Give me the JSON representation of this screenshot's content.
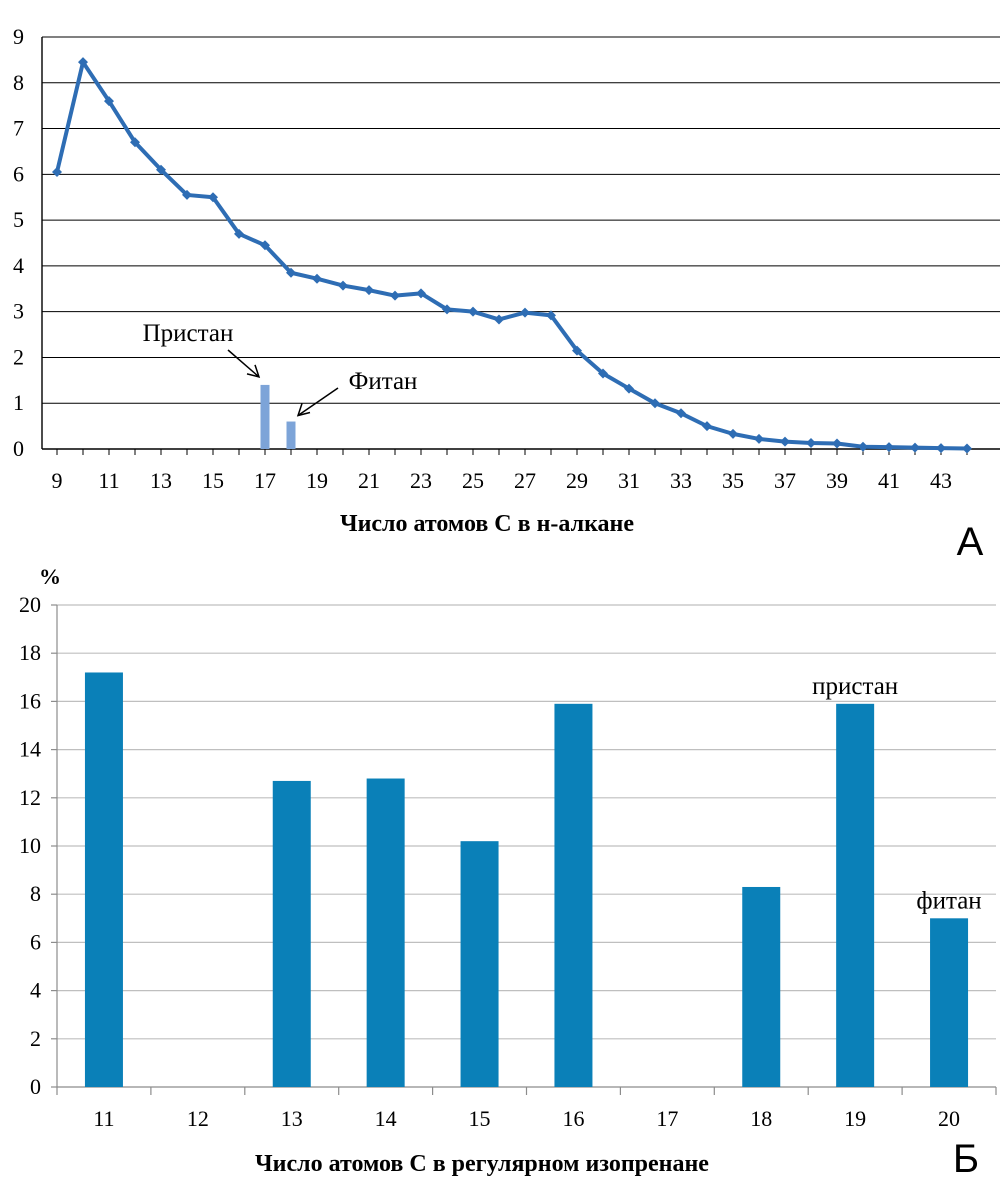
{
  "colors": {
    "line": "#2E6DB4",
    "small_bar": "#7DA4D8",
    "bar": "#0A80B8",
    "grid_a": "#000000",
    "grid_b": "#BFBFBF"
  },
  "chart_data": [
    {
      "type": "line",
      "panel_label": "А",
      "xlabel": "Число атомов С в н-алкане",
      "ylabel": "",
      "xlim": [
        9,
        44
      ],
      "ylim": [
        0,
        9
      ],
      "x_tick_labels": [
        "9",
        "11",
        "13",
        "15",
        "17",
        "19",
        "21",
        "23",
        "25",
        "27",
        "29",
        "31",
        "33",
        "35",
        "37",
        "39",
        "41",
        "43"
      ],
      "y_tick_labels": [
        "0",
        "1",
        "2",
        "3",
        "4",
        "5",
        "6",
        "7",
        "8",
        "9"
      ],
      "grid": true,
      "series": [
        {
          "x": [
            9,
            10,
            11,
            12,
            13,
            14,
            15,
            16,
            17,
            18,
            19,
            20,
            21,
            22,
            23,
            24,
            25,
            26,
            27,
            28,
            29,
            30,
            31,
            32,
            33,
            34,
            35,
            36,
            37,
            38,
            39,
            40,
            41,
            42,
            43,
            44
          ],
          "values": [
            6.05,
            8.45,
            7.6,
            6.7,
            6.1,
            5.55,
            5.5,
            4.7,
            4.45,
            3.85,
            3.72,
            3.57,
            3.47,
            3.35,
            3.4,
            3.05,
            3.0,
            2.83,
            2.98,
            2.92,
            2.15,
            1.65,
            1.32,
            1.0,
            0.78,
            0.5,
            0.33,
            0.22,
            0.16,
            0.13,
            0.12,
            0.05,
            0.04,
            0.03,
            0.02,
            0.01
          ]
        }
      ],
      "bars": [
        {
          "x": 17,
          "value": 1.4
        },
        {
          "x": 18,
          "value": 0.6
        }
      ],
      "annotations": [
        {
          "text": "Пристан",
          "target_x": 17
        },
        {
          "text": "Фитан",
          "target_x": 18
        }
      ]
    },
    {
      "type": "bar",
      "panel_label": "Б",
      "xlabel": "Число атомов С в регулярном изопренане",
      "ylabel": "%",
      "ylim": [
        0,
        20
      ],
      "y_tick_labels": [
        "0",
        "2",
        "4",
        "6",
        "8",
        "10",
        "12",
        "14",
        "16",
        "18",
        "20"
      ],
      "grid": true,
      "categories": [
        "11",
        "12",
        "13",
        "14",
        "15",
        "16",
        "17",
        "18",
        "19",
        "20"
      ],
      "values": [
        17.2,
        0,
        12.7,
        12.8,
        10.2,
        15.9,
        0,
        8.3,
        15.9,
        7.0
      ],
      "annotations": [
        {
          "text": "пристан",
          "category": "19"
        },
        {
          "text": "фитан",
          "category": "20"
        }
      ]
    }
  ]
}
